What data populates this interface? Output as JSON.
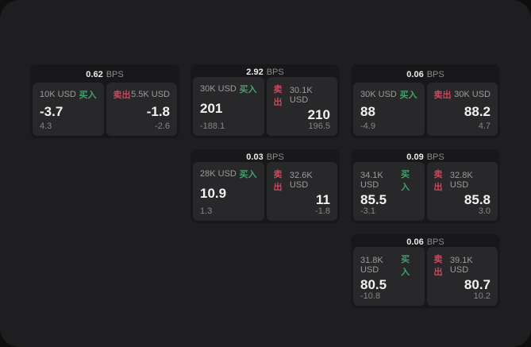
{
  "labels": {
    "bps_unit": "BPS",
    "buy": "买入",
    "sell": "卖出"
  },
  "colors": {
    "surface_bg": "#1e1e20",
    "card_bg": "#18181a",
    "panel_bg": "#28282a",
    "buy_green": "#3ea46a",
    "sell_red": "#c9485c"
  },
  "cards": [
    {
      "bps": "0.62",
      "buy": {
        "notional": "10K USD",
        "price": "-3.7",
        "delta": "4.3"
      },
      "sell": {
        "notional": "5.5K USD",
        "price": "-1.8",
        "delta": "-2.6"
      }
    },
    {
      "bps": "2.92",
      "buy": {
        "notional": "30K USD",
        "price": "201",
        "delta": "-188.1"
      },
      "sell": {
        "notional": "30.1K USD",
        "price": "210",
        "delta": "196.5"
      }
    },
    {
      "bps": "0.06",
      "buy": {
        "notional": "30K USD",
        "price": "88",
        "delta": "-4.9"
      },
      "sell": {
        "notional": "30K USD",
        "price": "88.2",
        "delta": "4.7"
      }
    },
    {
      "bps": "0.03",
      "buy": {
        "notional": "28K USD",
        "price": "10.9",
        "delta": "1.3"
      },
      "sell": {
        "notional": "32.6K USD",
        "price": "11",
        "delta": "-1.8"
      }
    },
    {
      "bps": "0.09",
      "buy": {
        "notional": "34.1K USD",
        "price": "85.5",
        "delta": "-3.1"
      },
      "sell": {
        "notional": "32.8K USD",
        "price": "85.8",
        "delta": "3.0"
      }
    },
    {
      "bps": "0.06",
      "buy": {
        "notional": "31.8K USD",
        "price": "80.5",
        "delta": "-10.8"
      },
      "sell": {
        "notional": "39.1K USD",
        "price": "80.7",
        "delta": "10.2"
      }
    }
  ]
}
